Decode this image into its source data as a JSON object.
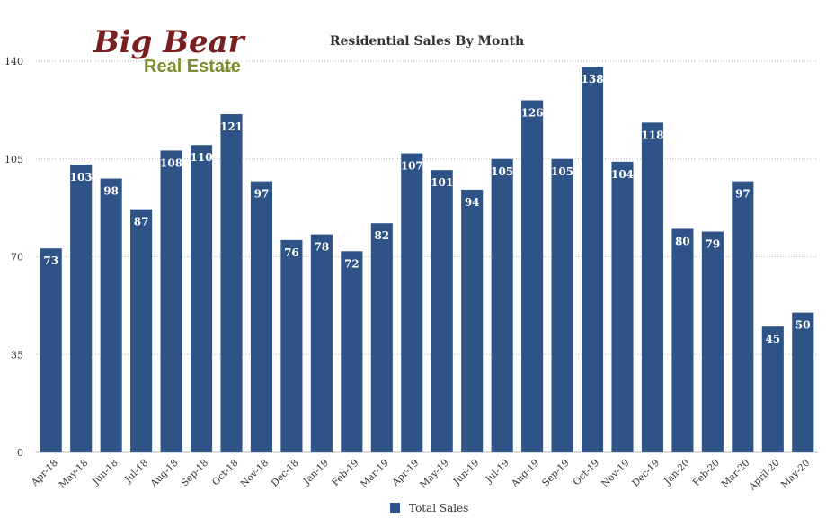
{
  "logo": {
    "main": "Big Bear",
    "sub": "Real Estate",
    "suffix": ".com"
  },
  "chart_data": {
    "type": "bar",
    "title": "Residential Sales By Month",
    "xlabel": "",
    "ylabel": "",
    "ylim": [
      0,
      140
    ],
    "yticks": [
      0,
      35,
      70,
      105,
      140
    ],
    "grid": true,
    "legend_position": "bottom",
    "categories": [
      "Apr-18",
      "May-18",
      "Jun-18",
      "Jul-18",
      "Aug-18",
      "Sep-18",
      "Oct-18",
      "Nov-18",
      "Dec-18",
      "Jan-19",
      "Feb-19",
      "Mar-19",
      "Apr-19",
      "May-19",
      "Jun-19",
      "Jul-19",
      "Aug-19",
      "Sep-19",
      "Oct-19",
      "Nov-19",
      "Dec-19",
      "Jan-20",
      "Feb-20",
      "Mar-20",
      "April-20",
      "May-20"
    ],
    "series": [
      {
        "name": "Total Sales",
        "color": "#2e5387",
        "values": [
          73,
          103,
          98,
          87,
          108,
          110,
          121,
          97,
          76,
          78,
          72,
          82,
          107,
          101,
          94,
          105,
          126,
          105,
          138,
          104,
          118,
          80,
          79,
          97,
          45,
          50
        ]
      }
    ]
  }
}
